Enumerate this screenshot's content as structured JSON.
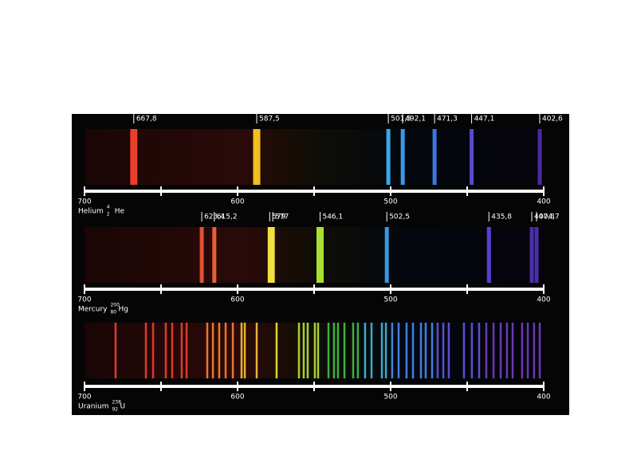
{
  "chart_data": [
    {
      "type": "spectrum",
      "element": {
        "name": "Helium",
        "mass": "4",
        "number": "2",
        "symbol": "He"
      },
      "xlim": [
        700,
        400
      ],
      "xticks": [
        700,
        600,
        500,
        400
      ],
      "minor_xticks": [
        650,
        550,
        450
      ],
      "lines": [
        667.8,
        587.5,
        501.5,
        492.1,
        471.3,
        447.1,
        402.6
      ],
      "value_labels": [
        "667,8",
        "587,5",
        "501,5",
        "492,1",
        "471,3",
        "447,1",
        "402,6"
      ],
      "colors": [
        "#e8402a",
        "#f0c020",
        "#3aa8e8",
        "#3a98e8",
        "#3a78e0",
        "#5a48d0",
        "#4a2aa0"
      ]
    },
    {
      "type": "spectrum",
      "element": {
        "name": "Mercury",
        "mass": "200",
        "number": "80",
        "symbol": "Hg"
      },
      "xlim": [
        700,
        400
      ],
      "xticks": [
        700,
        600,
        500,
        400
      ],
      "minor_xticks": [
        650,
        550,
        450
      ],
      "lines": [
        623.4,
        615.2,
        579,
        577,
        546.1,
        502.5,
        435.8,
        407.8,
        404.7
      ],
      "value_labels": [
        "623,4",
        "615,2",
        "579",
        "577",
        "546,1",
        "502,5",
        "435,8",
        "407,8",
        "404,7"
      ],
      "colors": [
        "#e05030",
        "#e86030",
        "#f0e040",
        "#f0e040",
        "#a8e030",
        "#3a98e0",
        "#5a40d8",
        "#4a30a8",
        "#4a30a8"
      ]
    },
    {
      "type": "spectrum",
      "element": {
        "name": "Uranium",
        "mass": "238",
        "number": "92",
        "symbol": "U"
      },
      "xlim": [
        700,
        400
      ],
      "xticks": [
        700,
        600,
        500,
        400
      ],
      "minor_xticks": [
        650,
        550,
        450
      ],
      "lines": [
        679.7,
        659.9,
        655.2,
        646.9,
        642.7,
        636.5,
        633.3,
        619.8,
        616.1,
        612.0,
        607.8,
        603.1,
        597.4,
        595.3,
        587.5,
        574.5,
        559.9,
        556.8,
        554.2,
        549.5,
        547.4,
        540.6,
        537.0,
        534.4,
        530.2,
        524.5,
        521.4,
        516.7,
        512.5,
        505.7,
        503.1,
        499.0,
        494.8,
        489.6,
        485.4,
        480.2,
        477.1,
        472.9,
        469.3,
        465.6,
        462.0,
        452.1,
        446.9,
        442.2,
        437.5,
        432.8,
        428.1,
        424.0,
        420.3,
        414.1,
        410.4,
        406.3,
        402.6
      ],
      "colors": [
        "#e03a2a",
        "#e03a2a",
        "#e03a2a",
        "#e03a2a",
        "#e03a2a",
        "#e03a2a",
        "#e03a2a",
        "#e8782a",
        "#e8782a",
        "#e8782a",
        "#e8782a",
        "#e8782a",
        "#e8b030",
        "#e8b030",
        "#e8b030",
        "#d8d830",
        "#a8d030",
        "#a8d030",
        "#a8d030",
        "#a8d030",
        "#a8d030",
        "#40b040",
        "#40b040",
        "#40b040",
        "#40b040",
        "#40b040",
        "#40b040",
        "#40a8d0",
        "#40a8d0",
        "#40a8d0",
        "#40a8d0",
        "#4080e0",
        "#4080e0",
        "#4080e0",
        "#4080e0",
        "#4080e0",
        "#4080e0",
        "#4080e0",
        "#5a50d0",
        "#5a50d0",
        "#5a50d0",
        "#5a50d0",
        "#5a50d0",
        "#5a50d0",
        "#6a3ab0",
        "#6a3ab0",
        "#6a3ab0",
        "#6a3ab0",
        "#6a3ab0",
        "#6a3ab0",
        "#6a3ab0",
        "#6a3ab0",
        "#6a3ab0"
      ]
    }
  ]
}
